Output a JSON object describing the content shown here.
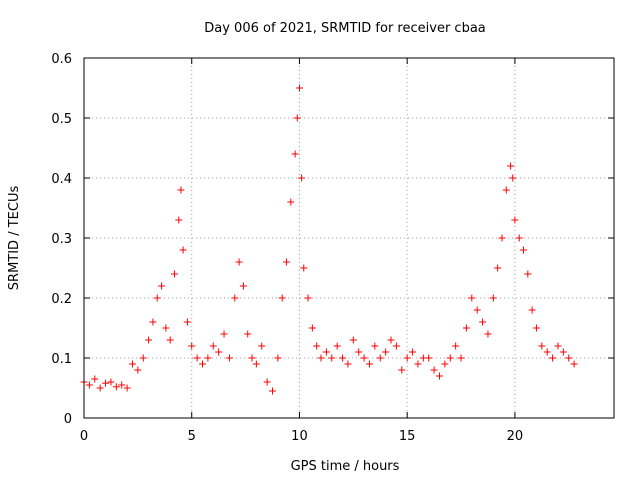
{
  "chart_data": {
    "type": "scatter",
    "title": "Day 006 of 2021, SRMTID for receiver cbaa",
    "xlabel": "GPS time / hours",
    "ylabel": "SRMTID / TECUs",
    "xlim": [
      0,
      24.6
    ],
    "ylim": [
      0,
      0.6
    ],
    "xticks": [
      0,
      5,
      10,
      15,
      20
    ],
    "xtick_labels": [
      "0",
      "5",
      "10",
      "15",
      "20"
    ],
    "yticks": [
      0,
      0.1,
      0.2,
      0.3,
      0.4,
      0.5,
      0.6
    ],
    "ytick_labels": [
      "0",
      "0.1",
      "0.2",
      "0.3",
      "0.4",
      "0.5",
      "0.6"
    ],
    "grid": true,
    "marker": "+",
    "series": [
      {
        "name": "SRMTID",
        "color": "#ff0000",
        "x": [
          0.0,
          0.25,
          0.5,
          0.75,
          1.0,
          1.25,
          1.5,
          1.75,
          2.0,
          2.25,
          2.5,
          2.75,
          3.0,
          3.2,
          3.4,
          3.6,
          3.8,
          4.0,
          4.2,
          4.4,
          4.5,
          4.6,
          4.8,
          5.0,
          5.25,
          5.5,
          5.75,
          6.0,
          6.25,
          6.5,
          6.75,
          7.0,
          7.2,
          7.4,
          7.6,
          7.8,
          8.0,
          8.25,
          8.5,
          8.75,
          9.0,
          9.2,
          9.4,
          9.6,
          9.8,
          9.9,
          10.0,
          10.1,
          10.2,
          10.4,
          10.6,
          10.8,
          11.0,
          11.25,
          11.5,
          11.75,
          12.0,
          12.25,
          12.5,
          12.75,
          13.0,
          13.25,
          13.5,
          13.75,
          14.0,
          14.25,
          14.5,
          14.75,
          15.0,
          15.25,
          15.5,
          15.75,
          16.0,
          16.25,
          16.5,
          16.75,
          17.0,
          17.25,
          17.5,
          17.75,
          18.0,
          18.25,
          18.5,
          18.75,
          19.0,
          19.2,
          19.4,
          19.6,
          19.8,
          19.9,
          20.0,
          20.2,
          20.4,
          20.6,
          20.8,
          21.0,
          21.25,
          21.5,
          21.75,
          22.0,
          22.25,
          22.5,
          22.75
        ],
        "y": [
          0.06,
          0.055,
          0.065,
          0.05,
          0.058,
          0.06,
          0.052,
          0.055,
          0.05,
          0.09,
          0.08,
          0.1,
          0.13,
          0.16,
          0.2,
          0.22,
          0.15,
          0.13,
          0.24,
          0.33,
          0.38,
          0.28,
          0.16,
          0.12,
          0.1,
          0.09,
          0.1,
          0.12,
          0.11,
          0.14,
          0.1,
          0.2,
          0.26,
          0.22,
          0.14,
          0.1,
          0.09,
          0.12,
          0.06,
          0.045,
          0.1,
          0.2,
          0.26,
          0.36,
          0.44,
          0.5,
          0.55,
          0.4,
          0.25,
          0.2,
          0.15,
          0.12,
          0.1,
          0.11,
          0.1,
          0.12,
          0.1,
          0.09,
          0.13,
          0.11,
          0.1,
          0.09,
          0.12,
          0.1,
          0.11,
          0.13,
          0.12,
          0.08,
          0.1,
          0.11,
          0.09,
          0.1,
          0.1,
          0.08,
          0.07,
          0.09,
          0.1,
          0.12,
          0.1,
          0.15,
          0.2,
          0.18,
          0.16,
          0.14,
          0.2,
          0.25,
          0.3,
          0.38,
          0.42,
          0.4,
          0.33,
          0.3,
          0.28,
          0.24,
          0.18,
          0.15,
          0.12,
          0.11,
          0.1,
          0.12,
          0.11,
          0.1,
          0.09
        ]
      }
    ]
  }
}
